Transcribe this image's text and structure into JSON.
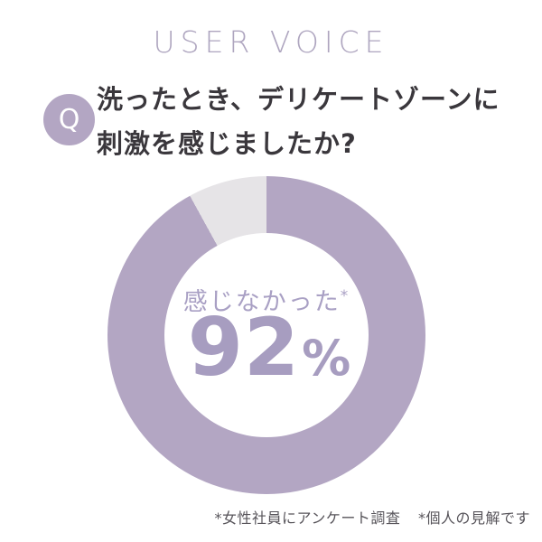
{
  "header": {
    "title": "USER VOICE"
  },
  "question": {
    "icon_label": "Q",
    "line1": "洗ったとき、デリケートゾーンに",
    "line2": "刺激を感じましたか?"
  },
  "chart_data": {
    "type": "pie",
    "style": "donut",
    "title": "洗ったとき、デリケートゾーンに刺激を感じましたか?",
    "direction": "clockwise",
    "start_angle_deg": 0,
    "slices": [
      {
        "label": "感じなかった",
        "value": 92,
        "color": "#b3a6c3"
      },
      {
        "label": "",
        "value": 8,
        "color": "#e6e4e7"
      }
    ],
    "center_label": "感じなかった",
    "center_label_note": "*",
    "center_value": "92",
    "center_unit": "%"
  },
  "footnotes": {
    "note1": "*女性社員にアンケート調査",
    "note2": "*個人の見解です"
  },
  "colors": {
    "accent_purple": "#b3a6c3",
    "slice_gray": "#e6e4e7",
    "title_purple": "#aea5bf",
    "question_text": "#3a373c",
    "center_text_purple": "#a79dc0",
    "footnote_gray": "#57545a",
    "background": "#ffffff"
  }
}
